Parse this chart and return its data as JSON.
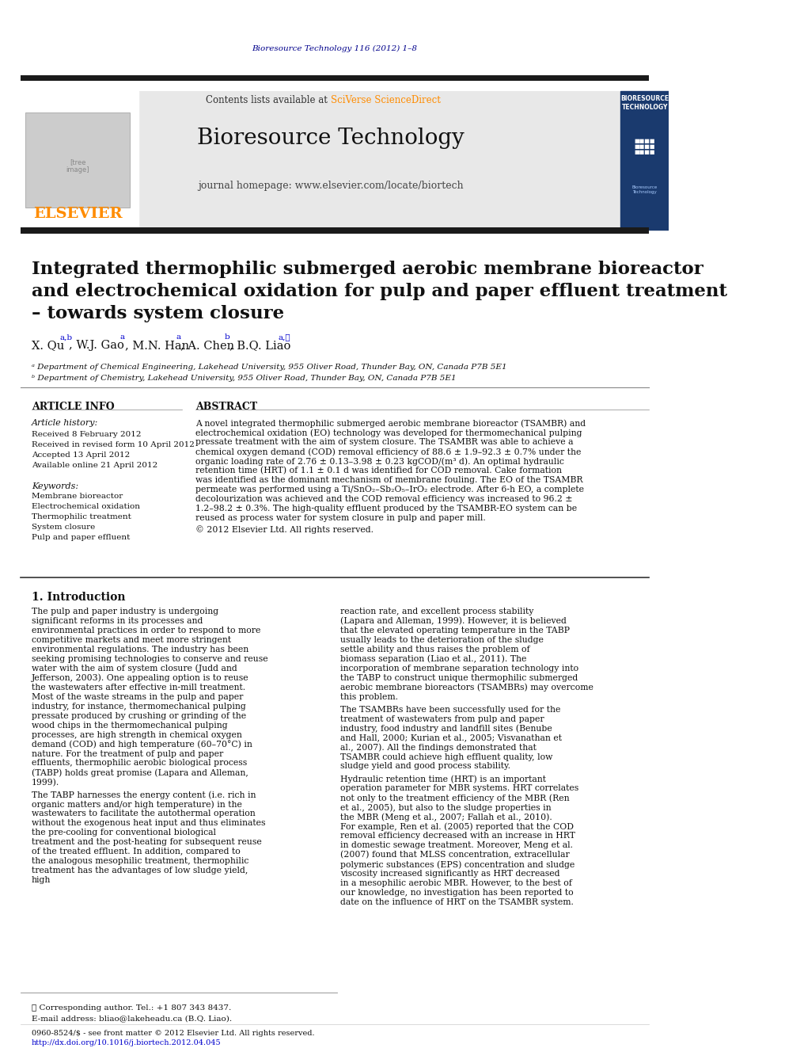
{
  "page_bg": "#ffffff",
  "top_journal_ref": "Bioresource Technology 116 (2012) 1–8",
  "top_journal_ref_color": "#00008B",
  "header_bg": "#e8e8e8",
  "header_title": "Bioresource Technology",
  "header_subtitle": "journal homepage: www.elsevier.com/locate/biortech",
  "header_contents_text": "Contents lists available at ",
  "header_sciverse": "SciVerse ScienceDirect",
  "header_sciverse_color": "#FF8C00",
  "elsevier_text": "ELSEVIER",
  "elsevier_color": "#FF8C00",
  "dark_bar_color": "#1a1a1a",
  "article_title_line1": "Integrated thermophilic submerged aerobic membrane bioreactor",
  "article_title_line2": "and electrochemical oxidation for pulp and paper effluent treatment",
  "article_title_line3": "– towards system closure",
  "authors": "X. Qu",
  "authors_superscript": "a,b",
  "authors_rest": ", W.J. Gao",
  "authors_rest_sup": "a",
  "authors_rest2": ", M.N. Han",
  "authors_rest2_sup": "a",
  "authors_rest3": ", A. Chen",
  "authors_rest3_sup": "b",
  "authors_rest4": ", B.Q. Liao",
  "authors_rest4_sup": "a,⋆",
  "affil_a": "ᵃ Department of Chemical Engineering, Lakehead University, 955 Oliver Road, Thunder Bay, ON, Canada P7B 5E1",
  "affil_b": "ᵇ Department of Chemistry, Lakehead University, 955 Oliver Road, Thunder Bay, ON, Canada P7B 5E1",
  "article_info_title": "ARTICLE INFO",
  "abstract_title": "ABSTRACT",
  "article_history_title": "Article history:",
  "received": "Received 8 February 2012",
  "received_revised": "Received in revised form 10 April 2012",
  "accepted": "Accepted 13 April 2012",
  "available": "Available online 21 April 2012",
  "keywords_title": "Keywords:",
  "kw1": "Membrane bioreactor",
  "kw2": "Electrochemical oxidation",
  "kw3": "Thermophilic treatment",
  "kw4": "System closure",
  "kw5": "Pulp and paper effluent",
  "abstract_text": "A novel integrated thermophilic submerged aerobic membrane bioreactor (TSAMBR) and electrochemical oxidation (EO) technology was developed for thermomechanical pulping pressate treatment with the aim of system closure. The TSAMBR was able to achieve a chemical oxygen demand (COD) removal efficiency of 88.6 ± 1.9–92.3 ± 0.7% under the organic loading rate of 2.76 ± 0.13–3.98 ± 0.23 kgCOD/(m³ d). An optimal hydraulic retention time (HRT) of 1.1 ± 0.1 d was identified for COD removal. Cake formation was identified as the dominant mechanism of membrane fouling. The EO of the TSAMBR permeate was performed using a Ti/SnO₂–Sb₂O₅–IrO₂ electrode. After 6-h EO, a complete decolourization was achieved and the COD removal efficiency was increased to 96.2 ± 1.2–98.2 ± 0.3%. The high-quality effluent produced by the TSAMBR-EO system can be reused as process water for system closure in pulp and paper mill.",
  "abstract_copyright": "© 2012 Elsevier Ltd. All rights reserved.",
  "intro_title": "1. Introduction",
  "intro_col1_para1": "The pulp and paper industry is undergoing significant reforms in its processes and environmental practices in order to respond to more competitive markets and meet more stringent environmental regulations. The industry has been seeking promising technologies to conserve and reuse water with the aim of system closure (Judd and Jefferson, 2003). One appealing option is to reuse the wastewaters after effective in-mill treatment. Most of the waste streams in the pulp and paper industry, for instance, thermomechanical pulping pressate produced by crushing or grinding of the wood chips in the thermomechanical pulping processes, are high strength in chemical oxygen demand (COD) and high temperature (60–70°C) in nature. For the treatment of pulp and paper effluents, thermophilic aerobic biological process (TABP) holds great promise (Lapara and Alleman, 1999).",
  "intro_col1_para2": "The TABP harnesses the energy content (i.e. rich in organic matters and/or high temperature) in the wastewaters to facilitate the autothermal operation without the exogenous heat input and thus eliminates the pre-cooling for conventional biological treatment and the post-heating for subsequent reuse of the treated effluent. In addition, compared to the analogous mesophilic treatment, thermophilic treatment has the advantages of low sludge yield, high",
  "intro_col2_para1": "reaction rate, and excellent process stability (Lapara and Alleman, 1999). However, it is believed that the elevated operating temperature in the TABP usually leads to the deterioration of the sludge settle ability and thus raises the problem of biomass separation (Liao et al., 2011). The incorporation of membrane separation technology into the TABP to construct unique thermophilic submerged aerobic membrane bioreactors (TSAMBRs) may overcome this problem.",
  "intro_col2_para2": "The TSAMBRs have been successfully used for the treatment of wastewaters from pulp and paper industry, food industry and landfill sites (Benube and Hall, 2000; Kurian et al., 2005; Visvanathan et al., 2007). All the findings demonstrated that TSAMBR could achieve high effluent quality, low sludge yield and good process stability.",
  "intro_col2_para3": "Hydraulic retention time (HRT) is an important operation parameter for MBR systems. HRT correlates not only to the treatment efficiency of the MBR (Ren et al., 2005), but also to the sludge properties in the MBR (Meng et al., 2007; Fallah et al., 2010). For example, Ren et al. (2005) reported that the COD removal efficiency decreased with an increase in HRT in domestic sewage treatment. Moreover, Meng et al. (2007) found that MLSS concentration, extracellular polymeric substances (EPS) concentration and sludge viscosity increased significantly as HRT decreased in a mesophilic aerobic MBR. However, to the best of our knowledge, no investigation has been reported to date on the influence of HRT on the TSAMBR system.",
  "footnote_star": "⋆ Corresponding author. Tel.: +1 807 343 8437.",
  "footnote_email": "E-mail address: bliao@lakeheadu.ca (B.Q. Liao).",
  "issn_line": "0960-8524/$ - see front matter © 2012 Elsevier Ltd. All rights reserved.",
  "doi_line": "http://dx.doi.org/10.1016/j.biortech.2012.04.045",
  "link_color": "#0000CD"
}
